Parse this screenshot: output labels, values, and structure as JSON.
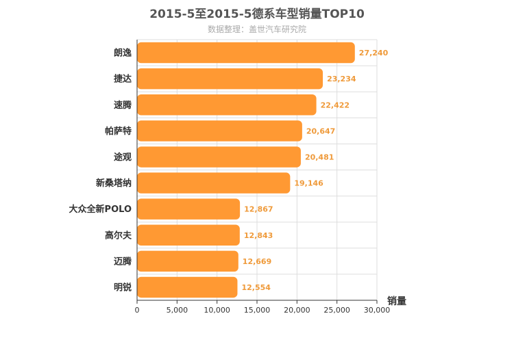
{
  "title": "2015-5至2015-5德系车型销量TOP10",
  "subtitle": "数据整理：盖世汽车研究院",
  "colors": {
    "bar": "#ff9933",
    "label": "#ef9a3a",
    "grid": "#dddddd",
    "axis": "#333333",
    "text": "#333333"
  },
  "chart_data": {
    "type": "bar",
    "orientation": "horizontal",
    "title": "2015-5至2015-5德系车型销量TOP10",
    "subtitle": "数据整理：盖世汽车研究院",
    "xlabel": "销量",
    "ylabel": "",
    "categories": [
      "朗逸",
      "捷达",
      "速腾",
      "帕萨特",
      "途观",
      "新桑塔纳",
      "大众全新POLO",
      "高尔夫",
      "迈腾",
      "明锐"
    ],
    "values": [
      27240,
      23234,
      22422,
      20647,
      20481,
      19146,
      12867,
      12843,
      12669,
      12554
    ],
    "value_labels": [
      "27,240",
      "23,234",
      "22,422",
      "20,647",
      "20,481",
      "19,146",
      "12,867",
      "12,843",
      "12,669",
      "12,554"
    ],
    "xlim": [
      0,
      30000
    ],
    "xticks": [
      0,
      5000,
      10000,
      15000,
      20000,
      25000,
      30000
    ],
    "xtick_labels": [
      "0",
      "5,000",
      "10,000",
      "15,000",
      "20,000",
      "25,000",
      "30,000"
    ],
    "grid": true,
    "legend": "none"
  }
}
